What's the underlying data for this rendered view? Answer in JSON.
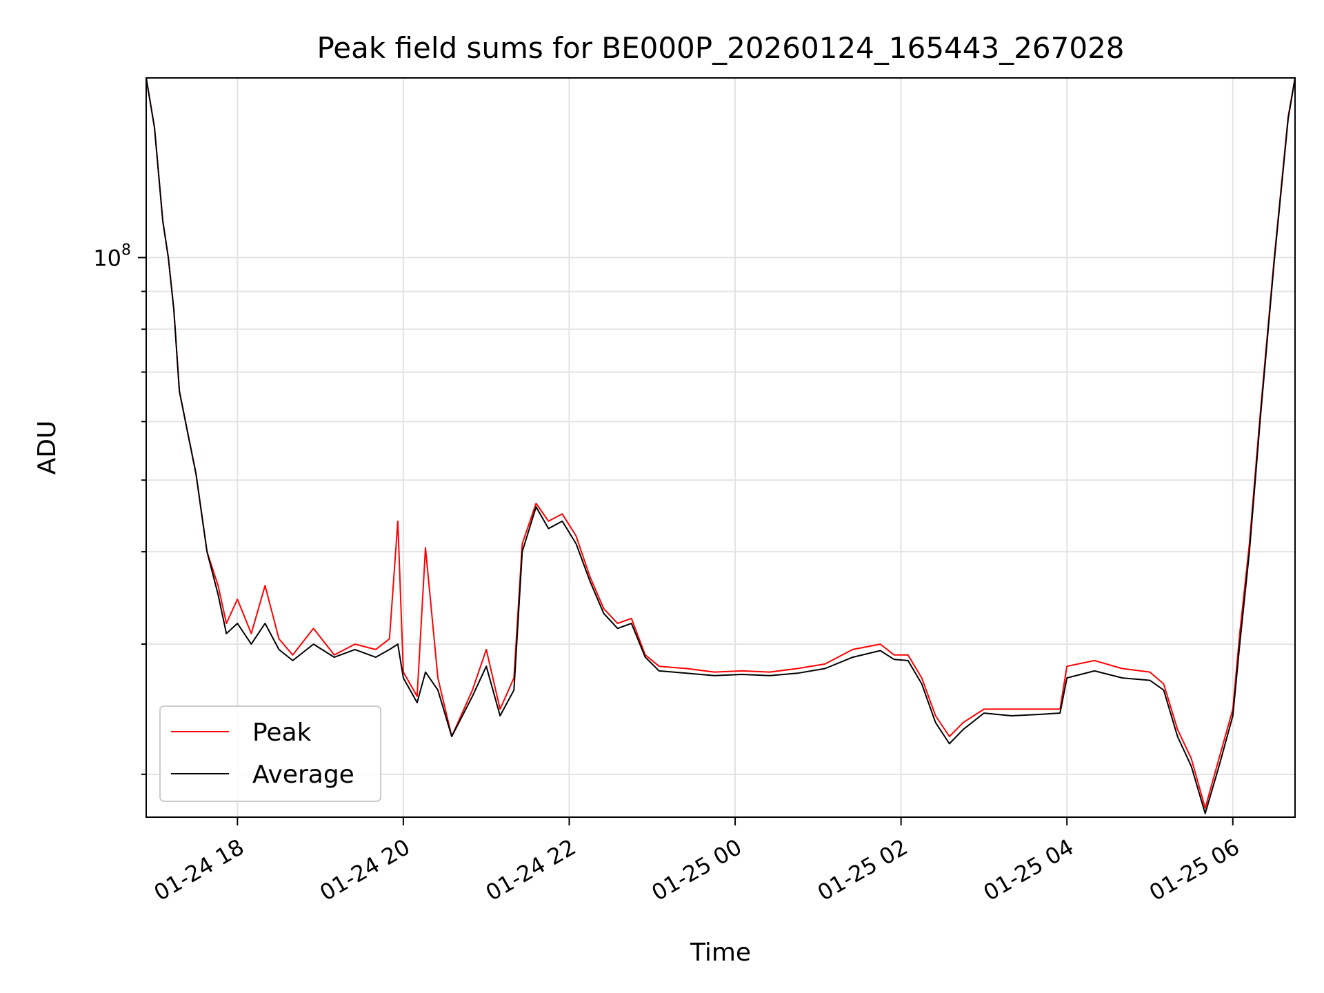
{
  "chart_data": {
    "type": "line",
    "title": "Peak field sums for BE000P_20260124_165443_267028",
    "xlabel": "Time",
    "ylabel": "ADU",
    "y_scale": "log",
    "grid": true,
    "legend_position": "lower-left",
    "xlim": [
      "2026-01-24 16:54",
      "2026-01-25 06:45"
    ],
    "ylim": [
      17500000,
      175000000
    ],
    "x_ticks": [
      {
        "t": "2026-01-24 18:00",
        "label": "01-24 18"
      },
      {
        "t": "2026-01-24 20:00",
        "label": "01-24 20"
      },
      {
        "t": "2026-01-24 22:00",
        "label": "01-24 22"
      },
      {
        "t": "2026-01-25 00:00",
        "label": "01-25 00"
      },
      {
        "t": "2026-01-25 02:00",
        "label": "01-25 02"
      },
      {
        "t": "2026-01-25 04:00",
        "label": "01-25 04"
      },
      {
        "t": "2026-01-25 06:00",
        "label": "01-25 06"
      }
    ],
    "y_major_ticks": [
      {
        "value": 100000000,
        "label": "10^8"
      }
    ],
    "series": [
      {
        "name": "Peak",
        "color": "#ff0000",
        "points": [
          [
            "2026-01-24 16:54",
            175000000
          ],
          [
            "2026-01-24 17:00",
            150000000
          ],
          [
            "2026-01-24 17:06",
            112000000
          ],
          [
            "2026-01-24 17:10",
            100000000
          ],
          [
            "2026-01-24 17:14",
            85000000
          ],
          [
            "2026-01-24 17:18",
            66000000
          ],
          [
            "2026-01-24 17:24",
            58000000
          ],
          [
            "2026-01-24 17:30",
            51000000
          ],
          [
            "2026-01-24 17:38",
            40000000
          ],
          [
            "2026-01-24 17:46",
            36000000
          ],
          [
            "2026-01-24 17:52",
            32000000
          ],
          [
            "2026-01-24 18:00",
            34500000
          ],
          [
            "2026-01-24 18:10",
            31000000
          ],
          [
            "2026-01-24 18:20",
            36000000
          ],
          [
            "2026-01-24 18:30",
            30500000
          ],
          [
            "2026-01-24 18:40",
            29000000
          ],
          [
            "2026-01-24 18:55",
            31500000
          ],
          [
            "2026-01-24 19:10",
            29000000
          ],
          [
            "2026-01-24 19:25",
            30000000
          ],
          [
            "2026-01-24 19:40",
            29500000
          ],
          [
            "2026-01-24 19:50",
            30500000
          ],
          [
            "2026-01-24 19:56",
            44000000
          ],
          [
            "2026-01-24 20:00",
            27500000
          ],
          [
            "2026-01-24 20:10",
            25500000
          ],
          [
            "2026-01-24 20:16",
            40500000
          ],
          [
            "2026-01-24 20:25",
            27000000
          ],
          [
            "2026-01-24 20:35",
            22500000
          ],
          [
            "2026-01-24 20:50",
            26000000
          ],
          [
            "2026-01-24 21:00",
            29500000
          ],
          [
            "2026-01-24 21:10",
            24500000
          ],
          [
            "2026-01-24 21:20",
            27000000
          ],
          [
            "2026-01-24 21:26",
            41000000
          ],
          [
            "2026-01-24 21:36",
            46500000
          ],
          [
            "2026-01-24 21:45",
            44000000
          ],
          [
            "2026-01-24 21:55",
            45000000
          ],
          [
            "2026-01-24 22:05",
            42000000
          ],
          [
            "2026-01-24 22:15",
            37000000
          ],
          [
            "2026-01-24 22:25",
            33500000
          ],
          [
            "2026-01-24 22:35",
            32000000
          ],
          [
            "2026-01-24 22:45",
            32500000
          ],
          [
            "2026-01-24 22:55",
            29000000
          ],
          [
            "2026-01-24 23:05",
            28000000
          ],
          [
            "2026-01-24 23:25",
            27800000
          ],
          [
            "2026-01-24 23:45",
            27500000
          ],
          [
            "2026-01-25 00:05",
            27600000
          ],
          [
            "2026-01-25 00:25",
            27500000
          ],
          [
            "2026-01-25 00:45",
            27800000
          ],
          [
            "2026-01-25 01:05",
            28200000
          ],
          [
            "2026-01-25 01:25",
            29500000
          ],
          [
            "2026-01-25 01:45",
            30000000
          ],
          [
            "2026-01-25 01:55",
            29000000
          ],
          [
            "2026-01-25 02:05",
            29000000
          ],
          [
            "2026-01-25 02:15",
            27000000
          ],
          [
            "2026-01-25 02:25",
            24000000
          ],
          [
            "2026-01-25 02:35",
            22500000
          ],
          [
            "2026-01-25 02:45",
            23500000
          ],
          [
            "2026-01-25 03:00",
            24500000
          ],
          [
            "2026-01-25 03:20",
            24500000
          ],
          [
            "2026-01-25 03:40",
            24500000
          ],
          [
            "2026-01-25 03:55",
            24500000
          ],
          [
            "2026-01-25 04:00",
            28000000
          ],
          [
            "2026-01-25 04:20",
            28500000
          ],
          [
            "2026-01-25 04:40",
            27800000
          ],
          [
            "2026-01-25 05:00",
            27500000
          ],
          [
            "2026-01-25 05:10",
            26500000
          ],
          [
            "2026-01-25 05:20",
            23000000
          ],
          [
            "2026-01-25 05:30",
            21000000
          ],
          [
            "2026-01-25 05:40",
            18000000
          ],
          [
            "2026-01-25 05:50",
            21000000
          ],
          [
            "2026-01-25 06:00",
            24500000
          ],
          [
            "2026-01-25 06:05",
            31000000
          ],
          [
            "2026-01-25 06:12",
            41000000
          ],
          [
            "2026-01-25 06:20",
            62000000
          ],
          [
            "2026-01-25 06:30",
            100000000
          ],
          [
            "2026-01-25 06:40",
            155000000
          ],
          [
            "2026-01-25 06:45",
            175000000
          ]
        ]
      },
      {
        "name": "Average",
        "color": "#000000",
        "points": [
          [
            "2026-01-24 16:54",
            175000000
          ],
          [
            "2026-01-24 17:00",
            150000000
          ],
          [
            "2026-01-24 17:06",
            112000000
          ],
          [
            "2026-01-24 17:10",
            100000000
          ],
          [
            "2026-01-24 17:14",
            85000000
          ],
          [
            "2026-01-24 17:18",
            66000000
          ],
          [
            "2026-01-24 17:24",
            58000000
          ],
          [
            "2026-01-24 17:30",
            51000000
          ],
          [
            "2026-01-24 17:38",
            40000000
          ],
          [
            "2026-01-24 17:46",
            35000000
          ],
          [
            "2026-01-24 17:52",
            31000000
          ],
          [
            "2026-01-24 18:00",
            32000000
          ],
          [
            "2026-01-24 18:10",
            30000000
          ],
          [
            "2026-01-24 18:20",
            32000000
          ],
          [
            "2026-01-24 18:30",
            29500000
          ],
          [
            "2026-01-24 18:40",
            28500000
          ],
          [
            "2026-01-24 18:55",
            30000000
          ],
          [
            "2026-01-24 19:10",
            28800000
          ],
          [
            "2026-01-24 19:25",
            29500000
          ],
          [
            "2026-01-24 19:40",
            28800000
          ],
          [
            "2026-01-24 19:50",
            29500000
          ],
          [
            "2026-01-24 19:56",
            30000000
          ],
          [
            "2026-01-24 20:00",
            27000000
          ],
          [
            "2026-01-24 20:10",
            25000000
          ],
          [
            "2026-01-24 20:16",
            27500000
          ],
          [
            "2026-01-24 20:25",
            26000000
          ],
          [
            "2026-01-24 20:35",
            22500000
          ],
          [
            "2026-01-24 20:50",
            25500000
          ],
          [
            "2026-01-24 21:00",
            28000000
          ],
          [
            "2026-01-24 21:10",
            24000000
          ],
          [
            "2026-01-24 21:20",
            26000000
          ],
          [
            "2026-01-24 21:26",
            40000000
          ],
          [
            "2026-01-24 21:36",
            46000000
          ],
          [
            "2026-01-24 21:45",
            43000000
          ],
          [
            "2026-01-24 21:55",
            44000000
          ],
          [
            "2026-01-24 22:05",
            41000000
          ],
          [
            "2026-01-24 22:15",
            36500000
          ],
          [
            "2026-01-24 22:25",
            33000000
          ],
          [
            "2026-01-24 22:35",
            31500000
          ],
          [
            "2026-01-24 22:45",
            32000000
          ],
          [
            "2026-01-24 22:55",
            28800000
          ],
          [
            "2026-01-24 23:05",
            27600000
          ],
          [
            "2026-01-24 23:25",
            27400000
          ],
          [
            "2026-01-24 23:45",
            27200000
          ],
          [
            "2026-01-25 00:05",
            27300000
          ],
          [
            "2026-01-25 00:25",
            27200000
          ],
          [
            "2026-01-25 00:45",
            27400000
          ],
          [
            "2026-01-25 01:05",
            27800000
          ],
          [
            "2026-01-25 01:25",
            28800000
          ],
          [
            "2026-01-25 01:45",
            29400000
          ],
          [
            "2026-01-25 01:55",
            28600000
          ],
          [
            "2026-01-25 02:05",
            28500000
          ],
          [
            "2026-01-25 02:15",
            26500000
          ],
          [
            "2026-01-25 02:25",
            23500000
          ],
          [
            "2026-01-25 02:35",
            22000000
          ],
          [
            "2026-01-25 02:45",
            23000000
          ],
          [
            "2026-01-25 03:00",
            24200000
          ],
          [
            "2026-01-25 03:20",
            24000000
          ],
          [
            "2026-01-25 03:40",
            24100000
          ],
          [
            "2026-01-25 03:55",
            24200000
          ],
          [
            "2026-01-25 04:00",
            27000000
          ],
          [
            "2026-01-25 04:20",
            27600000
          ],
          [
            "2026-01-25 04:40",
            27000000
          ],
          [
            "2026-01-25 05:00",
            26800000
          ],
          [
            "2026-01-25 05:10",
            26000000
          ],
          [
            "2026-01-25 05:20",
            22500000
          ],
          [
            "2026-01-25 05:30",
            20500000
          ],
          [
            "2026-01-25 05:40",
            17700000
          ],
          [
            "2026-01-25 05:50",
            20500000
          ],
          [
            "2026-01-25 06:00",
            24000000
          ],
          [
            "2026-01-25 06:05",
            30000000
          ],
          [
            "2026-01-25 06:12",
            40000000
          ],
          [
            "2026-01-25 06:20",
            61000000
          ],
          [
            "2026-01-25 06:30",
            99000000
          ],
          [
            "2026-01-25 06:40",
            154000000
          ],
          [
            "2026-01-25 06:45",
            175000000
          ]
        ]
      }
    ]
  }
}
